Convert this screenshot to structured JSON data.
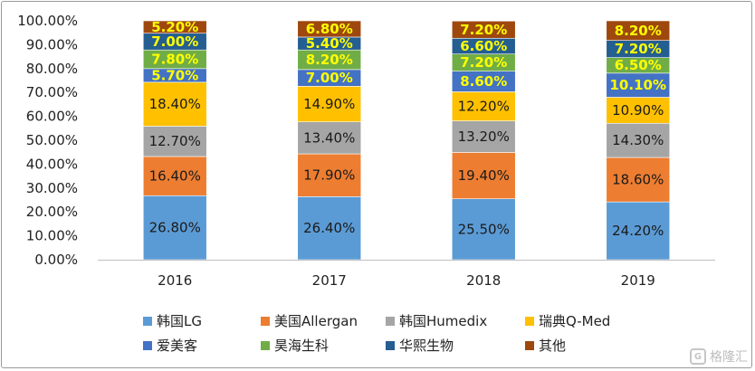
{
  "chart_data": {
    "type": "bar",
    "stacked": true,
    "categories": [
      "2016",
      "2017",
      "2018",
      "2019"
    ],
    "ylim": [
      0,
      100
    ],
    "y_ticks": [
      "0.00%",
      "10.00%",
      "20.00%",
      "30.00%",
      "40.00%",
      "50.00%",
      "60.00%",
      "70.00%",
      "80.00%",
      "90.00%",
      "100.00%"
    ],
    "series": [
      {
        "name": "韩国LG",
        "color": "#5B9BD5",
        "label_color": "#1a1a1a",
        "bold": false,
        "values": [
          26.8,
          26.4,
          25.5,
          24.2
        ],
        "labels": [
          "26.80%",
          "26.40%",
          "25.50%",
          "24.20%"
        ]
      },
      {
        "name": "美国Allergan",
        "color": "#ED7D31",
        "label_color": "#1a1a1a",
        "bold": false,
        "values": [
          16.4,
          17.9,
          19.4,
          18.6
        ],
        "labels": [
          "16.40%",
          "17.90%",
          "19.40%",
          "18.60%"
        ]
      },
      {
        "name": "韩国Humedix",
        "color": "#A5A5A5",
        "label_color": "#1a1a1a",
        "bold": false,
        "values": [
          12.7,
          13.4,
          13.2,
          14.3
        ],
        "labels": [
          "12.70%",
          "13.40%",
          "13.20%",
          "14.30%"
        ]
      },
      {
        "name": "瑞典Q-Med",
        "color": "#FFC000",
        "label_color": "#1a1a1a",
        "bold": false,
        "values": [
          18.4,
          14.9,
          12.2,
          10.9
        ],
        "labels": [
          "18.40%",
          "14.90%",
          "12.20%",
          "10.90%"
        ]
      },
      {
        "name": "爱美客",
        "color": "#4472C4",
        "label_color": "#FFFF00",
        "bold": true,
        "values": [
          5.7,
          7.0,
          8.6,
          10.1
        ],
        "labels": [
          "5.70%",
          "7.00%",
          "8.60%",
          "10.10%"
        ]
      },
      {
        "name": "昊海生科",
        "color": "#70AD47",
        "label_color": "#FFFF00",
        "bold": true,
        "values": [
          7.8,
          8.2,
          7.2,
          6.5
        ],
        "labels": [
          "7.80%",
          "8.20%",
          "7.20%",
          "6.50%"
        ]
      },
      {
        "name": "华熙生物",
        "color": "#255E91",
        "label_color": "#FFFF00",
        "bold": true,
        "values": [
          7.0,
          5.4,
          6.6,
          7.2
        ],
        "labels": [
          "7.00%",
          "5.40%",
          "6.60%",
          "7.20%"
        ]
      },
      {
        "name": "其他",
        "color": "#9E480E",
        "label_color": "#FFFF00",
        "bold": true,
        "values": [
          5.2,
          6.8,
          7.2,
          8.2
        ],
        "labels": [
          "5.20%",
          "6.80%",
          "7.20%",
          "8.20%"
        ]
      }
    ],
    "legend_position": "bottom",
    "grid": false
  },
  "watermark": {
    "text": "格隆汇",
    "icon": "gelonghui-logo-icon"
  }
}
